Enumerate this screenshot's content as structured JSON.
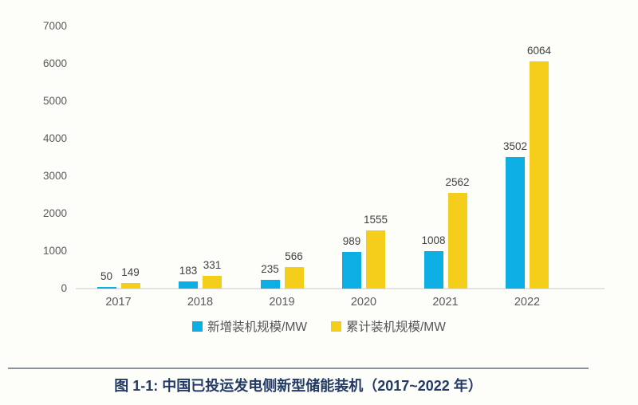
{
  "chart_data": {
    "type": "bar",
    "title": "",
    "xlabel": "",
    "ylabel": "",
    "categories": [
      "2017",
      "2018",
      "2019",
      "2020",
      "2021",
      "2022"
    ],
    "series": [
      {
        "name": "新增装机规模/MW",
        "color": "#0caee3",
        "values": [
          50,
          183,
          235,
          989,
          1008,
          3502
        ]
      },
      {
        "name": "累计装机规模/MW",
        "color": "#f5ce1b",
        "values": [
          149,
          331,
          566,
          1555,
          2562,
          6064
        ]
      }
    ],
    "ylim": [
      0,
      7000
    ],
    "yticks": [
      0,
      1000,
      2000,
      3000,
      4000,
      5000,
      6000,
      7000
    ],
    "grid": false,
    "value_labels": true,
    "legend_position": "bottom"
  },
  "caption": {
    "text": "图 1-1: 中国已投运发电侧新型储能装机（2017~2022 年）"
  },
  "colors": {
    "axis_text": "#5a5a5a",
    "value_label_text": "#414141",
    "baseline": "#e3e3e1",
    "divider": "#8b929c",
    "caption_text": "#233a64",
    "background": "#fdfdf9"
  }
}
